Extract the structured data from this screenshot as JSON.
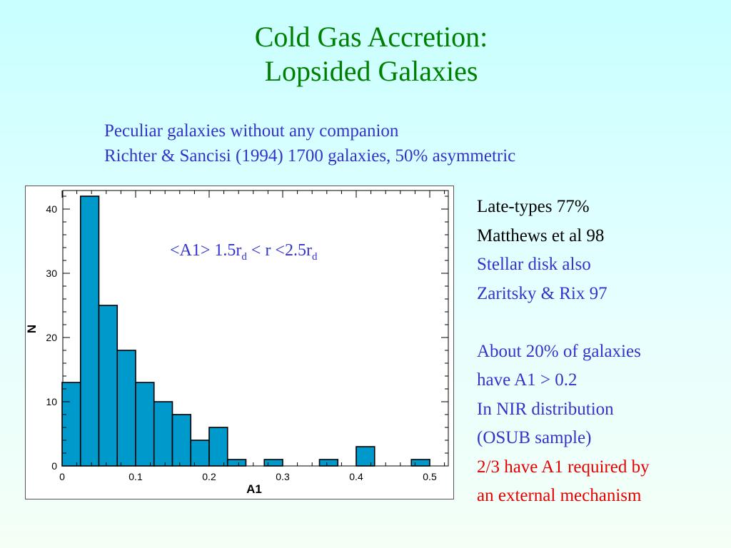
{
  "slide": {
    "title_line1": "Cold Gas Accretion:",
    "title_line2": "Lopsided Galaxies",
    "subtitle_line1": "Peculiar galaxies without any companion",
    "subtitle_line2": "Richter & Sancisi (1994) 1700 galaxies, 50% asymmetric"
  },
  "annotation": {
    "prefix": "<A1>  1.5r",
    "sub1": "d",
    "middle": " < r <2.5r",
    "sub2": "d"
  },
  "notes": [
    {
      "text": "Late-types 77%",
      "color": "black"
    },
    {
      "text": "Matthews et al 98",
      "color": "black"
    },
    {
      "text": "Stellar disk also",
      "color": "blue"
    },
    {
      "text": "Zaritsky & Rix 97",
      "color": "blue"
    },
    {
      "text": "",
      "color": "gap"
    },
    {
      "text": "About 20% of galaxies",
      "color": "blue"
    },
    {
      "text": "have  A1 > 0.2",
      "color": "blue"
    },
    {
      "text": "In NIR distribution",
      "color": "blue"
    },
    {
      "text": "(OSUB sample)",
      "color": "blue"
    },
    {
      "text": " 2/3 have A1 required by",
      "color": "red"
    },
    {
      "text": "an external mechanism",
      "color": "red"
    }
  ],
  "chart_data": {
    "type": "bar",
    "xlabel": "A1",
    "ylabel": "N",
    "xlim": [
      0,
      0.52
    ],
    "ylim": [
      0,
      46
    ],
    "bin_width": 0.025,
    "bins_start": [
      0,
      0.025,
      0.05,
      0.075,
      0.1,
      0.125,
      0.15,
      0.175,
      0.2,
      0.225,
      0.275,
      0.35,
      0.4,
      0.475
    ],
    "values": [
      13,
      42,
      25,
      18,
      13,
      10,
      8,
      4,
      6,
      1,
      1,
      1,
      3,
      1
    ],
    "xticks": [
      0,
      0.1,
      0.2,
      0.3,
      0.4,
      0.5
    ],
    "xtick_labels": [
      "0",
      "0.1",
      "0.2",
      "0.3",
      "0.4",
      "0.5"
    ],
    "yticks": [
      0,
      10,
      20,
      30,
      40
    ],
    "ytick_labels": [
      "0",
      "10",
      "20",
      "30",
      "40"
    ],
    "bar_color": "#0099cc"
  }
}
